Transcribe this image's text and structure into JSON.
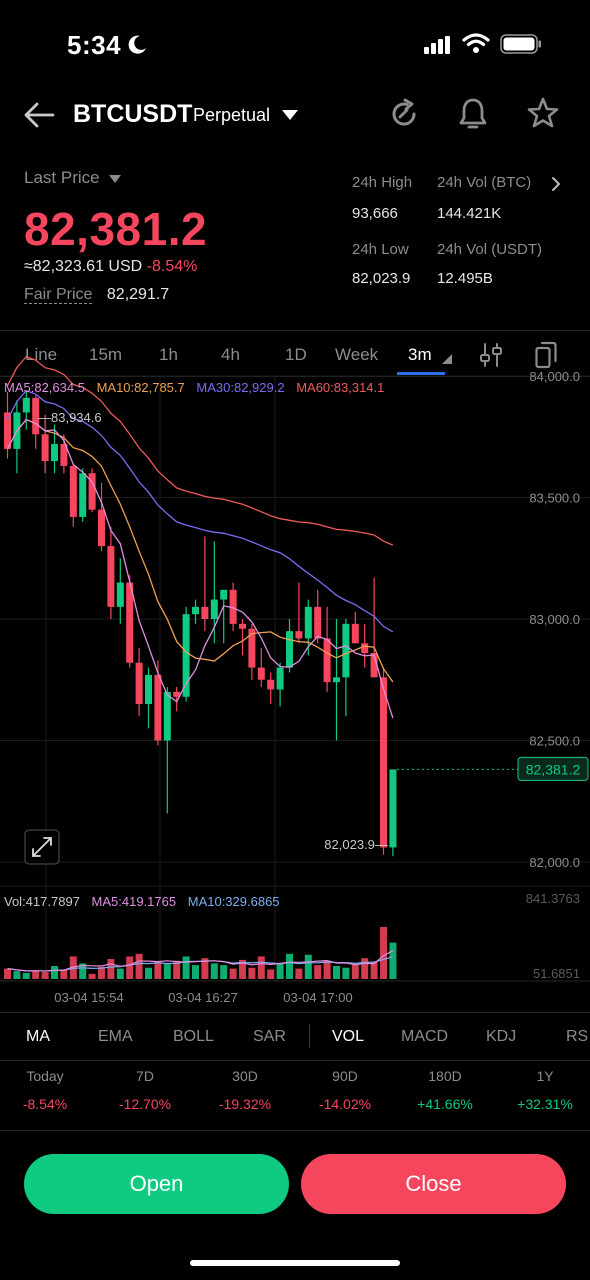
{
  "status_bar": {
    "time": "5:34"
  },
  "header": {
    "symbol": "BTCUSDT",
    "contract_type": "Perpetual"
  },
  "price": {
    "last_price_label": "Last Price",
    "last_price": "82,381.2",
    "usd_approx": "≈82,323.61 USD",
    "change_pct": "-8.54%",
    "fair_price_label": "Fair Price",
    "fair_price": "82,291.7"
  },
  "stats": {
    "high_label": "24h High",
    "high_value": "93,666",
    "vol_btc_label": "24h Vol (BTC)",
    "vol_btc_value": "144.421K",
    "low_label": "24h Low",
    "low_value": "82,023.9",
    "vol_usdt_label": "24h Vol  (USDT)",
    "vol_usdt_value": "12.495B"
  },
  "timeframes": [
    "Line",
    "15m",
    "1h",
    "4h",
    "1D",
    "Week",
    "3m"
  ],
  "active_timeframe": "3m",
  "chart": {
    "ma5_label": "MA5:82,634.5",
    "ma10_label": "MA10:82,785.7",
    "ma30_label": "MA30:82,929.2",
    "ma60_label": "MA60:83,314.1",
    "price_axis": [
      "84,000.0",
      "83,500.0",
      "83,000.0",
      "82,500.0",
      "82,000.0"
    ],
    "high_marker": "83,934.6",
    "low_marker": "82,023.9",
    "current_price_tag": "82,381.2",
    "vol_label": "Vol:417.7897",
    "vol_ma5_label": "MA5:419.1765",
    "vol_ma10_label": "MA10:329.6865",
    "vol_axis_top": "841.3763",
    "vol_axis_bottom": "51.6851",
    "time_axis": [
      "03-04 15:54",
      "03-04 16:27",
      "03-04 17:00"
    ],
    "colors": {
      "up": "#0ecb81",
      "down": "#f6465d",
      "ma5": "#e08ee0",
      "ma10": "#f0a050",
      "ma30": "#7a6cf0",
      "ma60": "#f05a5a"
    }
  },
  "chart_data": {
    "type": "candlestick",
    "ylim": [
      82000,
      84000
    ],
    "candles": [
      {
        "o": 83850,
        "h": 83934.6,
        "l": 83660,
        "c": 83700
      },
      {
        "o": 83700,
        "h": 83900,
        "l": 83600,
        "c": 83850
      },
      {
        "o": 83850,
        "h": 83934,
        "l": 83780,
        "c": 83910
      },
      {
        "o": 83910,
        "h": 83920,
        "l": 83700,
        "c": 83760
      },
      {
        "o": 83760,
        "h": 83840,
        "l": 83600,
        "c": 83650
      },
      {
        "o": 83650,
        "h": 83800,
        "l": 83600,
        "c": 83720
      },
      {
        "o": 83720,
        "h": 83760,
        "l": 83600,
        "c": 83630
      },
      {
        "o": 83630,
        "h": 83640,
        "l": 83380,
        "c": 83420
      },
      {
        "o": 83420,
        "h": 83620,
        "l": 83400,
        "c": 83600
      },
      {
        "o": 83600,
        "h": 83620,
        "l": 83440,
        "c": 83450
      },
      {
        "o": 83450,
        "h": 83560,
        "l": 83280,
        "c": 83300
      },
      {
        "o": 83300,
        "h": 83380,
        "l": 83000,
        "c": 83050
      },
      {
        "o": 83050,
        "h": 83250,
        "l": 82980,
        "c": 83150
      },
      {
        "o": 83150,
        "h": 83180,
        "l": 82800,
        "c": 82820
      },
      {
        "o": 82820,
        "h": 82880,
        "l": 82600,
        "c": 82650
      },
      {
        "o": 82650,
        "h": 82800,
        "l": 82550,
        "c": 82770
      },
      {
        "o": 82770,
        "h": 82830,
        "l": 82480,
        "c": 82500
      },
      {
        "o": 82500,
        "h": 82720,
        "l": 82200,
        "c": 82700
      },
      {
        "o": 82700,
        "h": 82720,
        "l": 82620,
        "c": 82680
      },
      {
        "o": 82680,
        "h": 83050,
        "l": 82660,
        "c": 83020
      },
      {
        "o": 83020,
        "h": 83080,
        "l": 82980,
        "c": 83050
      },
      {
        "o": 83050,
        "h": 83340,
        "l": 82950,
        "c": 83000
      },
      {
        "o": 83000,
        "h": 83320,
        "l": 82900,
        "c": 83080
      },
      {
        "o": 83080,
        "h": 83100,
        "l": 82900,
        "c": 83120
      },
      {
        "o": 83120,
        "h": 83150,
        "l": 82950,
        "c": 82980
      },
      {
        "o": 82980,
        "h": 83000,
        "l": 82850,
        "c": 82960
      },
      {
        "o": 82960,
        "h": 82980,
        "l": 82750,
        "c": 82800
      },
      {
        "o": 82800,
        "h": 82880,
        "l": 82720,
        "c": 82750
      },
      {
        "o": 82750,
        "h": 82780,
        "l": 82650,
        "c": 82710
      },
      {
        "o": 82710,
        "h": 82820,
        "l": 82640,
        "c": 82800
      },
      {
        "o": 82800,
        "h": 83000,
        "l": 82780,
        "c": 82950
      },
      {
        "o": 82950,
        "h": 83150,
        "l": 82900,
        "c": 82920
      },
      {
        "o": 82920,
        "h": 83080,
        "l": 82850,
        "c": 83050
      },
      {
        "o": 83050,
        "h": 83120,
        "l": 82900,
        "c": 82920
      },
      {
        "o": 82920,
        "h": 83050,
        "l": 82700,
        "c": 82740
      },
      {
        "o": 82740,
        "h": 83000,
        "l": 82500,
        "c": 82760
      },
      {
        "o": 82760,
        "h": 83000,
        "l": 82600,
        "c": 82980
      },
      {
        "o": 82980,
        "h": 83030,
        "l": 82920,
        "c": 82900
      },
      {
        "o": 82900,
        "h": 82980,
        "l": 82800,
        "c": 82860
      },
      {
        "o": 82860,
        "h": 83170,
        "l": 82780,
        "c": 82760
      },
      {
        "o": 82760,
        "h": 82800,
        "l": 82030,
        "c": 82060
      },
      {
        "o": 82060,
        "h": 82380,
        "l": 82023.9,
        "c": 82381.2
      }
    ],
    "volume": [
      120,
      90,
      70,
      100,
      80,
      150,
      110,
      260,
      180,
      60,
      140,
      230,
      120,
      260,
      290,
      130,
      200,
      170,
      210,
      260,
      160,
      240,
      180,
      160,
      120,
      220,
      130,
      260,
      110,
      180,
      290,
      120,
      280,
      160,
      210,
      150,
      130,
      170,
      240,
      200,
      600,
      420
    ]
  },
  "indicators": [
    "MA",
    "EMA",
    "BOLL",
    "SAR",
    "VOL",
    "MACD",
    "KDJ",
    "RS"
  ],
  "active_indicators": [
    "MA",
    "VOL"
  ],
  "performance": [
    {
      "label": "Today",
      "value": "-8.54%",
      "dir": "down"
    },
    {
      "label": "7D",
      "value": "-12.70%",
      "dir": "down"
    },
    {
      "label": "30D",
      "value": "-19.32%",
      "dir": "down"
    },
    {
      "label": "90D",
      "value": "-14.02%",
      "dir": "down"
    },
    {
      "label": "180D",
      "value": "+41.66%",
      "dir": "up"
    },
    {
      "label": "1Y",
      "value": "+32.31%",
      "dir": "up"
    }
  ],
  "actions": {
    "open_label": "Open",
    "close_label": "Close"
  }
}
